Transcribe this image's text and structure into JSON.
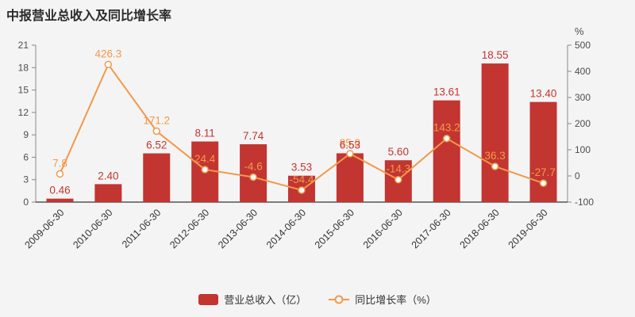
{
  "title": "中报营业总收入及同比增长率",
  "colors": {
    "bar": "#c23531",
    "line": "#f2994a",
    "background": "#f4f4f4",
    "axis": "#888888",
    "bottom_axis": "#555555",
    "tick_text": "#4d4d4d"
  },
  "legend": [
    {
      "label": "营业总收入（亿）",
      "type": "bar"
    },
    {
      "label": "同比增长率（%）",
      "type": "line"
    }
  ],
  "chart_data": {
    "type": "bar+line",
    "title": "中报营业总收入及同比增长率",
    "categories": [
      "2009-06-30",
      "2010-06-30",
      "2011-06-30",
      "2012-06-30",
      "2013-06-30",
      "2014-06-30",
      "2015-06-30",
      "2016-06-30",
      "2017-06-30",
      "2018-06-30",
      "2019-06-30"
    ],
    "series": [
      {
        "name": "营业总收入（亿）",
        "type": "bar",
        "axis": "left",
        "values": [
          0.46,
          2.4,
          6.52,
          8.11,
          7.74,
          3.53,
          6.53,
          5.6,
          13.61,
          18.55,
          13.4
        ],
        "labels": [
          "0.46",
          "2.40",
          "6.52",
          "8.11",
          "7.74",
          "3.53",
          "6.53",
          "5.60",
          "13.61",
          "18.55",
          "13.40"
        ]
      },
      {
        "name": "同比增长率（%）",
        "type": "line",
        "axis": "right",
        "values": [
          7.8,
          426.3,
          171.2,
          24.4,
          -4.6,
          -54.4,
          85.0,
          -14.3,
          143.2,
          36.3,
          -27.7
        ],
        "labels": [
          "7.8",
          "426.3",
          "171.2",
          "24.4",
          "-4.6",
          "-54.4",
          "85.0",
          "-14.3",
          "143.2",
          "36.3",
          "-27.7"
        ]
      }
    ],
    "left_axis": {
      "min": 0,
      "max": 21,
      "ticks": [
        0,
        3,
        6,
        9,
        12,
        15,
        18,
        21
      ]
    },
    "right_axis": {
      "min": -100,
      "max": 500,
      "ticks": [
        -100,
        0,
        100,
        200,
        300,
        400,
        500
      ],
      "unit": "%"
    },
    "grid": false,
    "legend_position": "bottom"
  }
}
